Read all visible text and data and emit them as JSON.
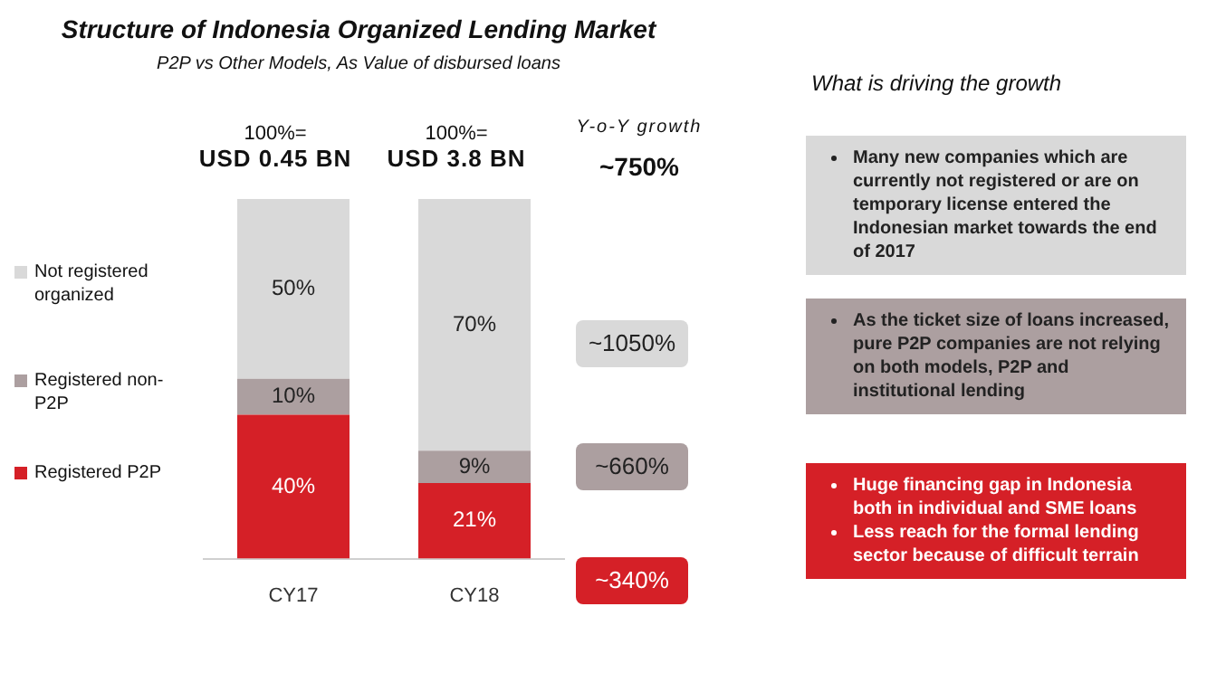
{
  "chart_data": {
    "type": "bar",
    "title": "Structure of Indonesia Organized Lending Market",
    "subtitle": "P2P vs Other Models, As Value of disbursed loans",
    "categories": [
      "CY17",
      "CY18"
    ],
    "stacked": true,
    "ylim": [
      0,
      100
    ],
    "tick_labels": "x",
    "grid": false,
    "legend": "left",
    "series": [
      {
        "name": "Registered P2P",
        "color": "#d52027",
        "values": [
          40,
          21
        ],
        "value_labels": [
          "40%",
          "21%"
        ]
      },
      {
        "name": "Registered non-P2P",
        "color": "#ac9fa0",
        "values": [
          10,
          9
        ],
        "value_labels": [
          "10%",
          "9%"
        ]
      },
      {
        "name": "Not registered organized",
        "color": "#d9d9d9",
        "values": [
          50,
          70
        ],
        "value_labels": [
          "50%",
          "70%"
        ]
      }
    ],
    "annotations": [
      "100%=",
      "USD 0.45 BN",
      "100%=",
      "USD 3.8 BN",
      "Y-o-Y growth",
      "~750%",
      "~1050%",
      "~660%",
      "~340%",
      "What is driving the growth",
      "Many new companies which are currently not registered or are on temporary license entered the Indonesian market towards the end of 2017",
      "As the ticket size of loans increased, pure P2P companies are not relying on both models, P2P and institutional lending",
      "Huge financing gap in Indonesia both in individual and SME loans",
      "Less reach for the formal lending sector because of difficult terrain"
    ]
  }
}
